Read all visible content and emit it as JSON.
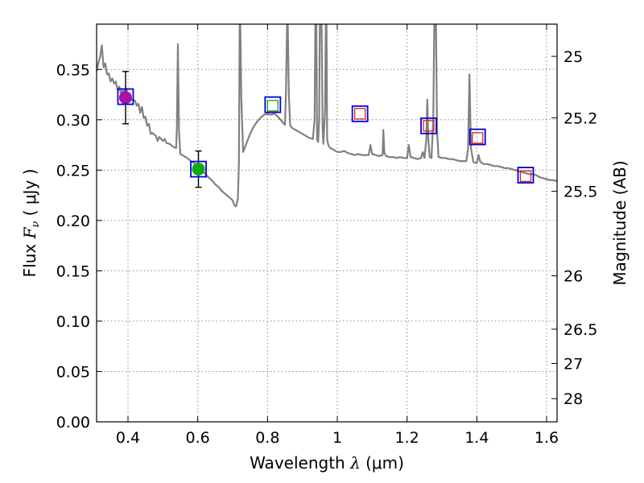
{
  "chart_data": {
    "type": "scatter",
    "xlabel": "Wavelength",
    "xlabel_symbol": "λ",
    "xlabel_unit": "(μm)",
    "ylabel": "Flux",
    "ylabel_symbol": "F",
    "ylabel_symbol_sub": "ν",
    "ylabel_unit": "( μJy )",
    "ylabel_right": "Magnitude (AB)",
    "xlim": [
      0.31,
      1.63
    ],
    "ylim": [
      0.0,
      0.395
    ],
    "grid": true,
    "x_ticks": [
      {
        "value": 0.4,
        "label": "0.4"
      },
      {
        "value": 0.6,
        "label": "0.6"
      },
      {
        "value": 0.8,
        "label": "0.8"
      },
      {
        "value": 1.0,
        "label": "1"
      },
      {
        "value": 1.2,
        "label": "1.2"
      },
      {
        "value": 1.4,
        "label": "1.4"
      },
      {
        "value": 1.6,
        "label": "1.6"
      }
    ],
    "y_ticks": [
      {
        "value": 0.0,
        "label": "0.00"
      },
      {
        "value": 0.05,
        "label": "0.05"
      },
      {
        "value": 0.1,
        "label": "0.10"
      },
      {
        "value": 0.15,
        "label": "0.15"
      },
      {
        "value": 0.2,
        "label": "0.20"
      },
      {
        "value": 0.25,
        "label": "0.25"
      },
      {
        "value": 0.3,
        "label": "0.30"
      },
      {
        "value": 0.35,
        "label": "0.35"
      }
    ],
    "right_ticks": [
      {
        "flux": 0.363,
        "label": "25"
      },
      {
        "flux": 0.302,
        "label": "25.2"
      },
      {
        "flux": 0.229,
        "label": "25.5"
      },
      {
        "flux": 0.145,
        "label": "26"
      },
      {
        "flux": 0.092,
        "label": "26.5"
      },
      {
        "flux": 0.058,
        "label": "27"
      },
      {
        "flux": 0.023,
        "label": "28"
      }
    ],
    "model_spectrum": {
      "name": "model SED",
      "color": "#808080",
      "points": [
        [
          0.31,
          0.348
        ],
        [
          0.315,
          0.357
        ],
        [
          0.32,
          0.362
        ],
        [
          0.325,
          0.374
        ],
        [
          0.33,
          0.352
        ],
        [
          0.335,
          0.356
        ],
        [
          0.34,
          0.345
        ],
        [
          0.345,
          0.346
        ],
        [
          0.35,
          0.338
        ],
        [
          0.355,
          0.341
        ],
        [
          0.36,
          0.336
        ],
        [
          0.365,
          0.338
        ],
        [
          0.37,
          0.33
        ],
        [
          0.375,
          0.333
        ],
        [
          0.38,
          0.326
        ],
        [
          0.385,
          0.33
        ],
        [
          0.39,
          0.326
        ],
        [
          0.395,
          0.331
        ],
        [
          0.4,
          0.323
        ],
        [
          0.41,
          0.32
        ],
        [
          0.42,
          0.319
        ],
        [
          0.425,
          0.314
        ],
        [
          0.43,
          0.316
        ],
        [
          0.435,
          0.307
        ],
        [
          0.44,
          0.313
        ],
        [
          0.445,
          0.302
        ],
        [
          0.45,
          0.303
        ],
        [
          0.455,
          0.294
        ],
        [
          0.46,
          0.296
        ],
        [
          0.465,
          0.286
        ],
        [
          0.47,
          0.287
        ],
        [
          0.48,
          0.284
        ],
        [
          0.485,
          0.279
        ],
        [
          0.49,
          0.283
        ],
        [
          0.5,
          0.279
        ],
        [
          0.505,
          0.281
        ],
        [
          0.51,
          0.277
        ],
        [
          0.52,
          0.276
        ],
        [
          0.53,
          0.273
        ],
        [
          0.538,
          0.272
        ],
        [
          0.54,
          0.293
        ],
        [
          0.543,
          0.375
        ],
        [
          0.546,
          0.29
        ],
        [
          0.55,
          0.266
        ],
        [
          0.56,
          0.264
        ],
        [
          0.57,
          0.262
        ],
        [
          0.58,
          0.259
        ],
        [
          0.59,
          0.257
        ],
        [
          0.6,
          0.253
        ],
        [
          0.61,
          0.25
        ],
        [
          0.62,
          0.247
        ],
        [
          0.63,
          0.243
        ],
        [
          0.64,
          0.24
        ],
        [
          0.65,
          0.236
        ],
        [
          0.66,
          0.233
        ],
        [
          0.67,
          0.229
        ],
        [
          0.68,
          0.226
        ],
        [
          0.69,
          0.223
        ],
        [
          0.7,
          0.22
        ],
        [
          0.705,
          0.215
        ],
        [
          0.71,
          0.214
        ],
        [
          0.715,
          0.222
        ],
        [
          0.718,
          0.258
        ],
        [
          0.72,
          0.395
        ],
        [
          0.722,
          0.395
        ],
        [
          0.725,
          0.32
        ],
        [
          0.73,
          0.268
        ],
        [
          0.74,
          0.277
        ],
        [
          0.75,
          0.286
        ],
        [
          0.76,
          0.293
        ],
        [
          0.77,
          0.298
        ],
        [
          0.78,
          0.302
        ],
        [
          0.79,
          0.305
        ],
        [
          0.8,
          0.306
        ],
        [
          0.81,
          0.305
        ],
        [
          0.82,
          0.306
        ],
        [
          0.83,
          0.303
        ],
        [
          0.84,
          0.299
        ],
        [
          0.85,
          0.295
        ],
        [
          0.853,
          0.33
        ],
        [
          0.856,
          0.395
        ],
        [
          0.858,
          0.395
        ],
        [
          0.861,
          0.325
        ],
        [
          0.865,
          0.294
        ],
        [
          0.87,
          0.292
        ],
        [
          0.88,
          0.29
        ],
        [
          0.89,
          0.288
        ],
        [
          0.9,
          0.286
        ],
        [
          0.91,
          0.284
        ],
        [
          0.92,
          0.282
        ],
        [
          0.93,
          0.281
        ],
        [
          0.935,
          0.3
        ],
        [
          0.937,
          0.395
        ],
        [
          0.94,
          0.395
        ],
        [
          0.942,
          0.28
        ],
        [
          0.945,
          0.278
        ],
        [
          0.948,
          0.3
        ],
        [
          0.95,
          0.395
        ],
        [
          0.955,
          0.395
        ],
        [
          0.958,
          0.29
        ],
        [
          0.96,
          0.276
        ],
        [
          0.965,
          0.31
        ],
        [
          0.967,
          0.395
        ],
        [
          0.969,
          0.395
        ],
        [
          0.971,
          0.28
        ],
        [
          0.975,
          0.274
        ],
        [
          0.98,
          0.272
        ],
        [
          0.99,
          0.27
        ],
        [
          1.0,
          0.268
        ],
        [
          1.01,
          0.268
        ],
        [
          1.02,
          0.269
        ],
        [
          1.03,
          0.267
        ],
        [
          1.04,
          0.266
        ],
        [
          1.05,
          0.265
        ],
        [
          1.06,
          0.266
        ],
        [
          1.07,
          0.265
        ],
        [
          1.08,
          0.265
        ],
        [
          1.09,
          0.265
        ],
        [
          1.095,
          0.275
        ],
        [
          1.1,
          0.266
        ],
        [
          1.11,
          0.265
        ],
        [
          1.12,
          0.264
        ],
        [
          1.13,
          0.265
        ],
        [
          1.132,
          0.29
        ],
        [
          1.135,
          0.267
        ],
        [
          1.14,
          0.264
        ],
        [
          1.15,
          0.263
        ],
        [
          1.16,
          0.263
        ],
        [
          1.17,
          0.262
        ],
        [
          1.18,
          0.263
        ],
        [
          1.19,
          0.262
        ],
        [
          1.2,
          0.262
        ],
        [
          1.205,
          0.275
        ],
        [
          1.21,
          0.263
        ],
        [
          1.22,
          0.262
        ],
        [
          1.23,
          0.261
        ],
        [
          1.24,
          0.262
        ],
        [
          1.245,
          0.268
        ],
        [
          1.25,
          0.262
        ],
        [
          1.255,
          0.28
        ],
        [
          1.258,
          0.32
        ],
        [
          1.261,
          0.28
        ],
        [
          1.265,
          0.263
        ],
        [
          1.27,
          0.262
        ],
        [
          1.275,
          0.3
        ],
        [
          1.278,
          0.395
        ],
        [
          1.283,
          0.395
        ],
        [
          1.286,
          0.29
        ],
        [
          1.29,
          0.263
        ],
        [
          1.3,
          0.262
        ],
        [
          1.31,
          0.262
        ],
        [
          1.32,
          0.261
        ],
        [
          1.33,
          0.261
        ],
        [
          1.34,
          0.26
        ],
        [
          1.35,
          0.259
        ],
        [
          1.36,
          0.259
        ],
        [
          1.37,
          0.259
        ],
        [
          1.375,
          0.272
        ],
        [
          1.379,
          0.345
        ],
        [
          1.383,
          0.272
        ],
        [
          1.39,
          0.258
        ],
        [
          1.4,
          0.257
        ],
        [
          1.405,
          0.265
        ],
        [
          1.41,
          0.258
        ],
        [
          1.42,
          0.256
        ],
        [
          1.43,
          0.256
        ],
        [
          1.44,
          0.255
        ],
        [
          1.45,
          0.254
        ],
        [
          1.46,
          0.254
        ],
        [
          1.47,
          0.253
        ],
        [
          1.48,
          0.252
        ],
        [
          1.49,
          0.252
        ],
        [
          1.5,
          0.251
        ],
        [
          1.51,
          0.25
        ],
        [
          1.52,
          0.249
        ],
        [
          1.53,
          0.248
        ],
        [
          1.54,
          0.247
        ],
        [
          1.55,
          0.246
        ],
        [
          1.56,
          0.246
        ],
        [
          1.57,
          0.245
        ],
        [
          1.58,
          0.243
        ],
        [
          1.59,
          0.242
        ],
        [
          1.6,
          0.241
        ],
        [
          1.61,
          0.24
        ],
        [
          1.62,
          0.24
        ],
        [
          1.63,
          0.239
        ]
      ]
    },
    "photometry": [
      {
        "name": "band-0.39",
        "x": 0.393,
        "y": 0.322,
        "yerr": 0.026,
        "marker": "circle",
        "color": "#aa10aa"
      },
      {
        "name": "band-0.60",
        "x": 0.602,
        "y": 0.251,
        "yerr": 0.018,
        "marker": "circle",
        "color": "#10aa10"
      },
      {
        "name": "band-0.81",
        "x": 0.815,
        "y": 0.314,
        "marker": "square",
        "color": "#18a018"
      },
      {
        "name": "band-1.06",
        "x": 1.065,
        "y": 0.306,
        "marker": "square",
        "color": "#dd2020"
      },
      {
        "name": "band-1.26",
        "x": 1.262,
        "y": 0.294,
        "marker": "square",
        "color": "#dd2020"
      },
      {
        "name": "band-1.40",
        "x": 1.402,
        "y": 0.282,
        "marker": "square",
        "color": "#dd2020"
      },
      {
        "name": "band-1.54",
        "x": 1.54,
        "y": 0.244,
        "marker": "square",
        "color": "#dd2020"
      }
    ],
    "model_photometry": [
      {
        "name": "model-0.39",
        "x": 0.393,
        "y": 0.323
      },
      {
        "name": "model-0.60",
        "x": 0.602,
        "y": 0.251
      },
      {
        "name": "model-0.81",
        "x": 0.815,
        "y": 0.315
      },
      {
        "name": "model-1.06",
        "x": 1.065,
        "y": 0.306
      },
      {
        "name": "model-1.26",
        "x": 1.262,
        "y": 0.294
      },
      {
        "name": "model-1.40",
        "x": 1.402,
        "y": 0.283
      },
      {
        "name": "model-1.54",
        "x": 1.54,
        "y": 0.245
      }
    ],
    "colors": {
      "model_marker": "#0000dd",
      "errorbar": "#000000",
      "grid": "#8a8a8a"
    }
  }
}
